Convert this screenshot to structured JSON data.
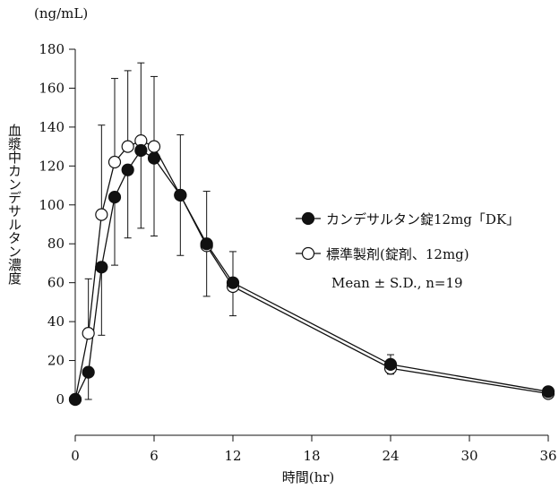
{
  "chart_data": {
    "type": "line",
    "ylabel_unit": "(ng/mL)",
    "ylabel": "血漿中カンデサルタン濃度",
    "xlabel": "時間(hr)",
    "xlim": [
      0,
      36
    ],
    "ylim": [
      0,
      180
    ],
    "xticks": [
      0,
      6,
      12,
      18,
      24,
      30,
      36
    ],
    "yticks": [
      0,
      20,
      40,
      60,
      80,
      100,
      120,
      140,
      160,
      180
    ],
    "legend_position": "right",
    "annotation": "Mean ± S.D., n=19",
    "x": [
      0,
      1,
      2,
      3,
      4,
      5,
      6,
      8,
      10,
      12,
      24,
      36
    ],
    "series": [
      {
        "name": "カンデサルタン錠12mg「DK」",
        "marker": "filled-circle",
        "color": "#111111",
        "values": [
          0,
          14,
          68,
          104,
          118,
          128,
          124,
          105,
          80,
          60,
          18,
          4
        ],
        "sd": [
          0,
          14,
          35,
          35,
          35,
          40,
          40,
          31,
          27,
          17,
          5,
          3
        ]
      },
      {
        "name": "標準製剤(錠剤、12mg)",
        "marker": "open-circle",
        "color": "#111111",
        "values": [
          0,
          34,
          95,
          122,
          130,
          133,
          130,
          105,
          79,
          58,
          16,
          3
        ],
        "sd": [
          0,
          28,
          46,
          43,
          39,
          40,
          36,
          31,
          28,
          18,
          7,
          3
        ]
      }
    ]
  }
}
